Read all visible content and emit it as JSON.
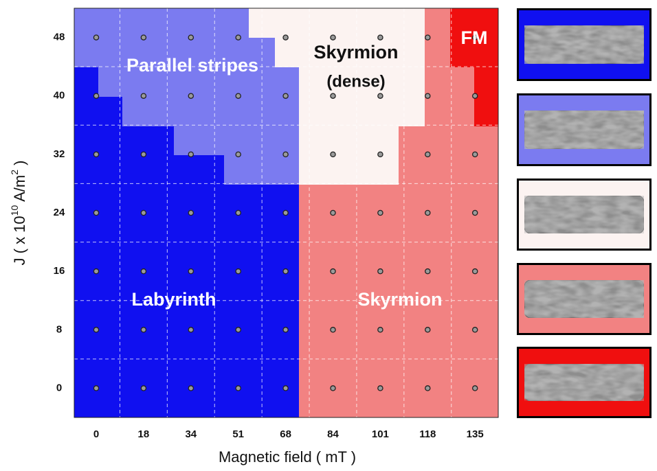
{
  "chart_data": {
    "type": "phase-map",
    "xlabel": "Magnetic field ( mT )",
    "ylabel": [
      "J ( x 10",
      "10",
      " A/m",
      "2",
      " )"
    ],
    "categories": [
      0,
      18,
      34,
      51,
      68,
      84,
      101,
      118,
      135
    ],
    "ylim": [
      -4,
      52
    ],
    "yticks": [
      0,
      8,
      16,
      24,
      32,
      40,
      48
    ],
    "grid": true,
    "regions": [
      {
        "label": [
          "Labyrinth"
        ],
        "color": "#1010f0"
      },
      {
        "label": [
          "Skyrmion"
        ],
        "color": "#f28282"
      },
      {
        "label": [
          "Parallel stripes"
        ],
        "color": "#7b7bf0"
      },
      {
        "label": [
          "Skyrmion",
          "(dense)"
        ],
        "color": "#fcf3f1"
      },
      {
        "label": [
          "FM"
        ],
        "color": "#f00f0f"
      }
    ]
  }
}
